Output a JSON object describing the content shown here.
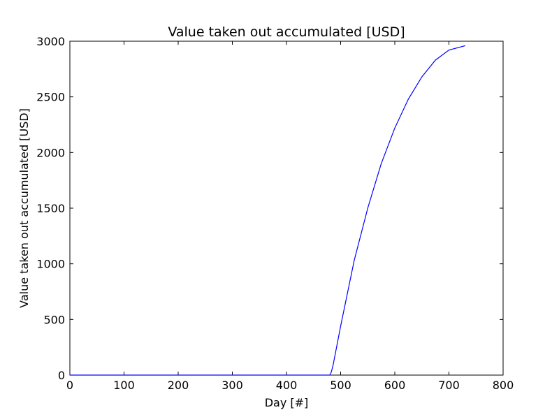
{
  "chart_data": {
    "type": "line",
    "title": "Value taken out accumulated [USD]",
    "xlabel": "Day [#]",
    "ylabel": "Value taken out accumulated [USD]",
    "xlim": [
      0,
      800
    ],
    "ylim": [
      0,
      3000
    ],
    "xticks": [
      0,
      100,
      200,
      300,
      400,
      500,
      600,
      700,
      800
    ],
    "yticks": [
      0,
      500,
      1000,
      1500,
      2000,
      2500,
      3000
    ],
    "grid": false,
    "legend": "none",
    "series": [
      {
        "color": "#0000ff",
        "x": [
          0,
          100,
          200,
          300,
          400,
          480,
          483,
          486,
          490,
          500,
          525,
          550,
          575,
          600,
          625,
          650,
          675,
          700,
          730
        ],
        "y": [
          0,
          0,
          0,
          0,
          0,
          0,
          30,
          90,
          190,
          440,
          1030,
          1500,
          1900,
          2220,
          2480,
          2680,
          2830,
          2920,
          2960
        ]
      }
    ]
  }
}
